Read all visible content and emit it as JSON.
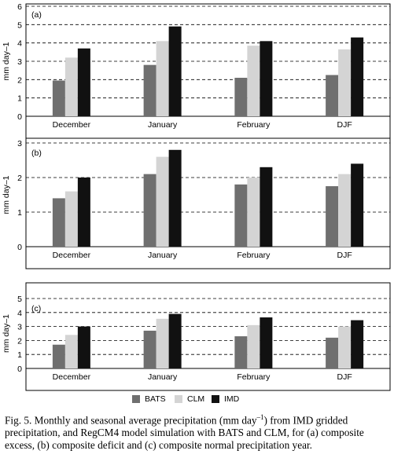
{
  "chart_data": [
    {
      "type": "bar",
      "panel_label": "(a)",
      "categories": [
        "December",
        "January",
        "February",
        "DJF"
      ],
      "ylabel": "mm day–1",
      "ylim": [
        0,
        6
      ],
      "yticks": [
        0,
        1,
        2,
        3,
        4,
        5,
        6
      ],
      "grid": "horizontal dashed",
      "series": [
        {
          "name": "BATS",
          "color": "#6f6f6f",
          "values": [
            1.95,
            2.8,
            2.1,
            2.25
          ]
        },
        {
          "name": "CLM",
          "color": "#d4d4d4",
          "values": [
            3.2,
            4.1,
            3.85,
            3.65
          ]
        },
        {
          "name": "IMD",
          "color": "#111111",
          "values": [
            3.7,
            4.9,
            4.1,
            4.3
          ]
        }
      ]
    },
    {
      "type": "bar",
      "panel_label": "(b)",
      "categories": [
        "December",
        "January",
        "February",
        "DJF"
      ],
      "ylabel": "mm day–1",
      "ylim": [
        0,
        3
      ],
      "yticks": [
        0,
        1,
        2,
        3
      ],
      "grid": "horizontal dashed",
      "series": [
        {
          "name": "BATS",
          "color": "#6f6f6f",
          "values": [
            1.4,
            2.1,
            1.8,
            1.75
          ]
        },
        {
          "name": "CLM",
          "color": "#d4d4d4",
          "values": [
            1.6,
            2.6,
            2.0,
            2.1
          ]
        },
        {
          "name": "IMD",
          "color": "#111111",
          "values": [
            2.0,
            2.8,
            2.3,
            2.4
          ]
        }
      ]
    },
    {
      "type": "bar",
      "panel_label": "(c)",
      "categories": [
        "December",
        "January",
        "February",
        "DJF"
      ],
      "ylabel": "mm day–1",
      "ylim": [
        0,
        5
      ],
      "yticks": [
        0,
        1,
        2,
        3,
        4,
        5
      ],
      "grid": "horizontal dashed",
      "series": [
        {
          "name": "BATS",
          "color": "#6f6f6f",
          "values": [
            1.7,
            2.7,
            2.3,
            2.2
          ]
        },
        {
          "name": "CLM",
          "color": "#d4d4d4",
          "values": [
            2.4,
            3.55,
            3.1,
            3.0
          ]
        },
        {
          "name": "IMD",
          "color": "#111111",
          "values": [
            3.0,
            3.9,
            3.65,
            3.45
          ]
        }
      ]
    }
  ],
  "legend": {
    "position": "bottom-center",
    "items": [
      "BATS",
      "CLM",
      "IMD"
    ]
  },
  "caption": {
    "lead": "Fig. 5. Monthly and seasonal average precipitation (mm day",
    "sup": "–1",
    "rest": ") from IMD gridded precipitation, and RegCM4 model simulation with BATS and CLM, for (a) composite excess, (b) composite deficit and (c) composite normal precipitation year."
  }
}
